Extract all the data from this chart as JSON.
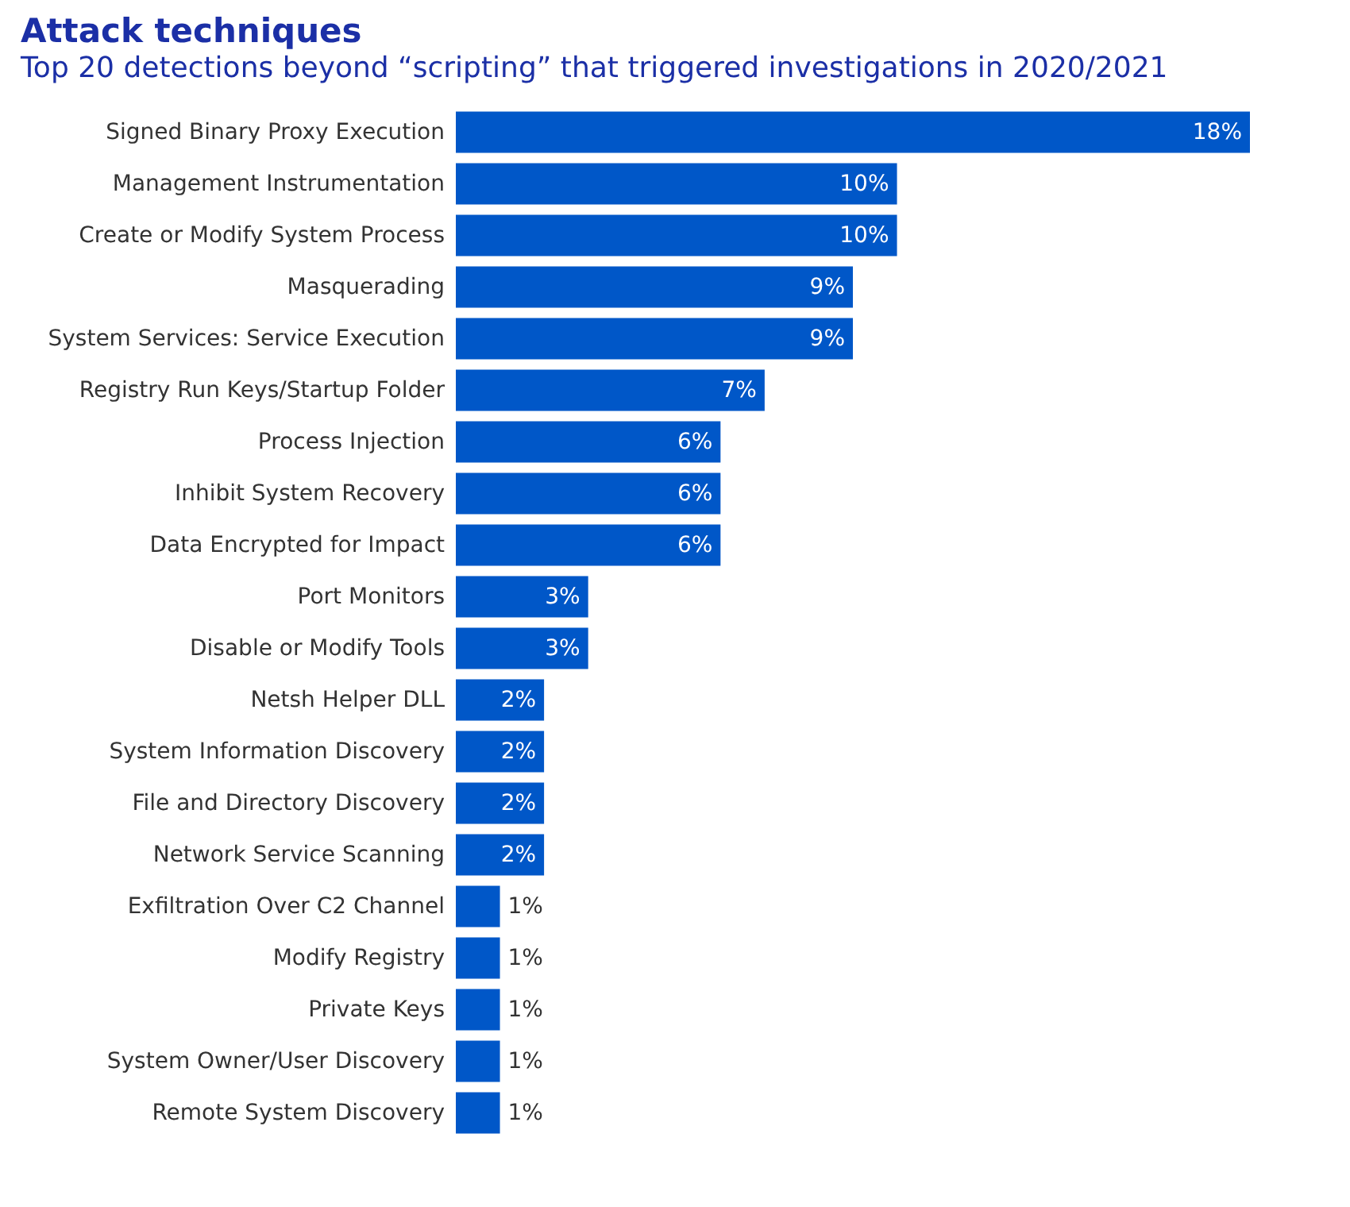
{
  "chart_data": {
    "type": "bar",
    "orientation": "horizontal",
    "title": "Attack techniques",
    "subtitle": "Top 20 detections beyond “scripting” that triggered investigations in 2020/2021",
    "categories": [
      "Signed Binary Proxy Execution",
      "Management Instrumentation",
      "Create or Modify System Process",
      "Masquerading",
      "System Services: Service Execution",
      "Registry Run Keys/Startup Folder",
      "Process Injection",
      "Inhibit System Recovery",
      "Data Encrypted for Impact",
      "Port Monitors",
      "Disable or Modify Tools",
      "Netsh Helper DLL",
      "System Information Discovery",
      "File and Directory Discovery",
      "Network Service Scanning",
      "Exfiltration Over C2 Channel",
      "Modify Registry",
      "Private Keys",
      "System Owner/User Discovery",
      "Remote System Discovery"
    ],
    "values": [
      18,
      10,
      10,
      9,
      9,
      7,
      6,
      6,
      6,
      3,
      3,
      2,
      2,
      2,
      2,
      1,
      1,
      1,
      1,
      1
    ],
    "value_labels": [
      "18%",
      "10%",
      "10%",
      "9%",
      "9%",
      "7%",
      "6%",
      "6%",
      "6%",
      "3%",
      "3%",
      "2%",
      "2%",
      "2%",
      "2%",
      "1%",
      "1%",
      "1%",
      "1%",
      "1%"
    ],
    "color": "#0057c8"
  }
}
